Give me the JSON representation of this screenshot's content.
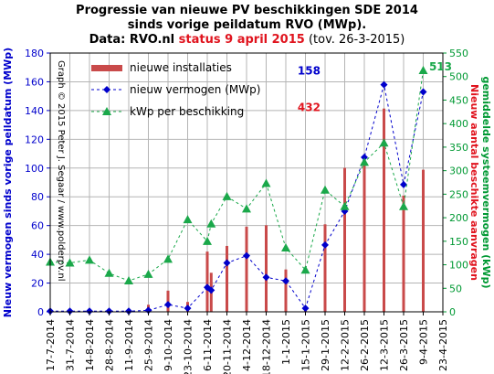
{
  "title": {
    "line1": "Progressie van nieuwe PV beschikkingen SDE 2014",
    "line2": "sinds vorige peildatum RVO (MWp).",
    "line3_a": "Data: RVO.nl ",
    "line3_b": "status 9 april 2015",
    "line3_c": " (tov. 26-3-2015)"
  },
  "colors": {
    "bars": "#c94a4a",
    "blue": "#0000cc",
    "green": "#1aa84a",
    "greenAxis": "#009933",
    "red": "#e0141e",
    "grid": "#b4b4b4"
  },
  "chart_data": {
    "type": "bar+line",
    "ylabel_left": "Nieuw vermogen sinds vorige peildatum (MWp)",
    "ylabel_right_1": "Nieuw aantal beschikte aanvragen",
    "ylabel_right_2": "gemiddelde systeemvermogen (kWp)",
    "ylim_left": [
      0,
      180
    ],
    "ylim_right": [
      0,
      550
    ],
    "yticks_left": [
      0,
      20,
      40,
      60,
      80,
      100,
      120,
      140,
      160,
      180
    ],
    "yticks_right": [
      0,
      50,
      100,
      150,
      200,
      250,
      300,
      350,
      400,
      450,
      500,
      550
    ],
    "x_tick_labels": [
      "17-7-2014",
      "31-7-2014",
      "14-8-2014",
      "28-8-2014",
      "11-9-2014",
      "25-9-2014",
      "9-10-2014",
      "23-10-2014",
      "6-11-2014",
      "20-11-2014",
      "4-12-2014",
      "18-12-2014",
      "1-1-2015",
      "15-1-2015",
      "29-1-2015",
      "12-2-2015",
      "26-2-2015",
      "12-3-2015",
      "26-3-2015",
      "9-4-2015",
      "23-4-2015"
    ],
    "watermark": "Graph © 2015 Peter J. Segaar / www.polderpv.nl",
    "legend": [
      {
        "label": "nieuwe installaties",
        "kind": "bar"
      },
      {
        "label": "nieuw vermogen (MWp)",
        "kind": "blue"
      },
      {
        "label": "kWp per beschikking",
        "kind": "green"
      }
    ],
    "annotations": [
      {
        "text": "158",
        "color": "blue",
        "x": 12.6,
        "y_left": 165
      },
      {
        "text": "432",
        "color": "red",
        "x": 12.6,
        "y_left": 139.5
      },
      {
        "text": "513",
        "color": "green",
        "x": 19.3,
        "y_left": 168
      }
    ],
    "series": [
      {
        "name": "nieuwe installaties",
        "kind": "bar",
        "axis": "right",
        "points": [
          [
            5,
            15
          ],
          [
            6,
            45
          ],
          [
            7,
            21
          ],
          [
            8,
            128
          ],
          [
            8.2,
            83
          ],
          [
            9,
            140
          ],
          [
            10,
            181
          ],
          [
            11,
            184
          ],
          [
            12,
            90
          ],
          [
            13,
            5
          ],
          [
            14,
            186
          ],
          [
            15,
            306
          ],
          [
            16,
            312
          ],
          [
            17,
            432
          ],
          [
            18,
            247
          ],
          [
            19,
            302
          ]
        ]
      },
      {
        "name": "nieuw vermogen (MWp)",
        "kind": "line",
        "axis": "left",
        "points": [
          [
            0,
            0.5
          ],
          [
            1,
            0.5
          ],
          [
            2,
            0.5
          ],
          [
            3,
            0.5
          ],
          [
            4,
            0.5
          ],
          [
            5,
            1
          ],
          [
            6,
            5
          ],
          [
            7,
            2.5
          ],
          [
            8,
            17
          ],
          [
            8.2,
            15
          ],
          [
            9,
            34
          ],
          [
            10,
            39
          ],
          [
            11,
            24
          ],
          [
            12,
            21.5
          ],
          [
            13,
            2.5
          ],
          [
            14,
            46.5
          ],
          [
            15,
            70
          ],
          [
            16,
            107.5
          ],
          [
            17,
            158
          ],
          [
            18,
            88.5
          ],
          [
            19,
            153
          ]
        ]
      },
      {
        "name": "kWp per beschikking",
        "kind": "line",
        "axis": "right",
        "points": [
          [
            0,
            106
          ],
          [
            1,
            104
          ],
          [
            2,
            110
          ],
          [
            3,
            82
          ],
          [
            4,
            66
          ],
          [
            5,
            80
          ],
          [
            6,
            112
          ],
          [
            7,
            196
          ],
          [
            8,
            150
          ],
          [
            8.2,
            187
          ],
          [
            9,
            245
          ],
          [
            10,
            219
          ],
          [
            11,
            273
          ],
          [
            12,
            136
          ],
          [
            13,
            89
          ],
          [
            14,
            259
          ],
          [
            15,
            224
          ],
          [
            16,
            318
          ],
          [
            17,
            359
          ],
          [
            18,
            224
          ],
          [
            19,
            513
          ]
        ]
      }
    ]
  }
}
